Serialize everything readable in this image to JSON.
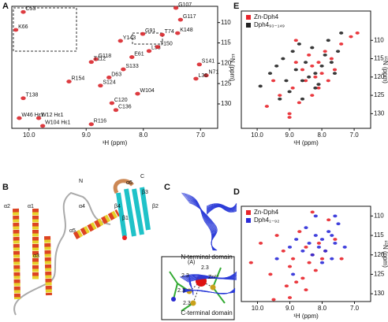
{
  "chart_data": [
    {
      "type": "scatter",
      "panel": "A",
      "xlabel": "¹H (ppm)",
      "ylabel": "¹⁵N (ppm)",
      "xlim": [
        10.3,
        6.7
      ],
      "ylim": [
        136,
        106
      ],
      "xticks": [
        {
          "value": 10,
          "label": "10.0"
        },
        {
          "value": 9,
          "label": "9.0"
        },
        {
          "value": 8,
          "label": "8.0"
        },
        {
          "value": 7,
          "label": "7.0"
        }
      ],
      "yticks": [
        110,
        115,
        120,
        125,
        130
      ],
      "series": [
        {
          "color": "#d9262b",
          "x": [
            7.43,
            7.35,
            8.01,
            7.67,
            7.4,
            8.83,
            8.91,
            6.9,
            10.1,
            10.17,
            9.83,
            9.76,
            8.91,
            7.08,
            7.02,
            10.1,
            10.23,
            8.55,
            8.48,
            8.2,
            8.35,
            7.9,
            8.6,
            8.75,
            7.75,
            8.1,
            9.3,
            8.4
          ],
          "values": [
            106.4,
            109.3,
            112.8,
            113.0,
            112.6,
            119.0,
            119.7,
            123.0,
            128.6,
            133.5,
            133.5,
            135.4,
            135.0,
            123.8,
            120.3,
            107.4,
            111.8,
            129.8,
            131.5,
            118.5,
            121.5,
            117.0,
            123.5,
            125.5,
            116.0,
            127.5,
            124.5,
            114.5
          ],
          "point_labels": [
            "G107",
            "G117",
            "G91",
            "T74",
            "K148",
            "G118",
            "T112",
            "N71",
            "T138",
            "W46 Hε1",
            "W12 Hε1",
            "W104 Hε1",
            "R116",
            "L36",
            "S141",
            "C53",
            "K66",
            "C120",
            "C136",
            "E61",
            "S133",
            "L98",
            "D63",
            "S124",
            "T150",
            "W104",
            "R154",
            "Y143"
          ]
        }
      ]
    },
    {
      "type": "scatter",
      "panel": "E",
      "xlabel": "¹H (ppm)",
      "ylabel": "¹⁵N (ppm)",
      "xlim": [
        10.49,
        6.49
      ],
      "ylim": [
        134,
        102
      ],
      "legend": "upper left",
      "xticks": [
        {
          "value": 10,
          "label": "10.0"
        },
        {
          "value": 9,
          "label": "9.0"
        },
        {
          "value": 8,
          "label": "8.0"
        },
        {
          "value": 7,
          "label": "7.0"
        }
      ],
      "yticks": [
        110,
        115,
        120,
        125,
        130
      ],
      "series": [
        {
          "name": "Zn-Dph4",
          "color": "#e8232a",
          "x": [
            9.7,
            9.5,
            9.3,
            9.0,
            8.9,
            8.8,
            8.6,
            8.5,
            8.4,
            8.3,
            8.2,
            8.1,
            8.0,
            7.9,
            7.8,
            7.6,
            7.4,
            7.1,
            6.9,
            9.0,
            8.7,
            8.3,
            8.1,
            7.7,
            8.8
          ],
          "values": [
            128,
            121,
            125,
            130,
            123,
            116,
            118,
            121,
            114,
            117,
            120,
            116,
            119,
            113,
            121,
            118,
            111,
            109,
            108,
            131,
            127,
            125,
            123,
            115,
            110
          ]
        },
        {
          "name": "Dph4₉₃₋₁₄₉",
          "color": "#222222",
          "x": [
            9.9,
            9.6,
            9.4,
            9.2,
            9.1,
            9.0,
            8.9,
            8.8,
            8.7,
            8.6,
            8.5,
            8.4,
            8.3,
            8.2,
            8.1,
            8.0,
            7.9,
            7.8,
            7.7,
            7.5,
            7.4,
            9.3,
            8.6,
            8.2,
            7.6
          ],
          "values": [
            122.5,
            119,
            117,
            115,
            121,
            124,
            113,
            118,
            111,
            126,
            116,
            120,
            112,
            119,
            122,
            117,
            114,
            110,
            116,
            113,
            108,
            126,
            121,
            123,
            119
          ]
        }
      ]
    },
    {
      "type": "scatter",
      "panel": "D",
      "xlabel": "¹H (ppm)",
      "ylabel": "¹⁵N (ppm)",
      "xlim": [
        10.5,
        6.5
      ],
      "ylim": [
        132,
        107.5
      ],
      "legend": "upper left",
      "xticks": [
        {
          "value": 10,
          "label": "10.0"
        },
        {
          "value": 9,
          "label": "9.0"
        },
        {
          "value": 8,
          "label": "8.0"
        },
        {
          "value": 7,
          "label": "7.0"
        }
      ],
      "yticks": [
        110,
        115,
        120,
        125,
        130
      ],
      "series": [
        {
          "name": "Zn-Dph4",
          "color": "#e8232a",
          "x": [
            10.2,
            9.9,
            9.6,
            9.4,
            9.2,
            9.1,
            9.0,
            8.9,
            8.7,
            8.6,
            8.5,
            8.4,
            8.3,
            8.2,
            8.1,
            8.0,
            7.9,
            7.8,
            7.6,
            7.4,
            9.5,
            9.0,
            8.8,
            8.5,
            8.3
          ],
          "values": [
            122,
            117,
            125,
            115,
            119,
            128,
            123,
            121,
            114,
            126,
            118,
            122,
            120,
            124,
            117,
            121,
            119,
            111,
            116,
            121,
            131.5,
            131,
            127,
            129,
            109
          ]
        },
        {
          "name": "Dph4₁₋₉₂",
          "color": "#2b2bd8",
          "x": [
            9.4,
            9.0,
            8.8,
            8.6,
            8.5,
            8.4,
            8.3,
            8.2,
            8.1,
            8.0,
            7.9,
            7.8,
            7.7,
            7.6,
            7.5,
            7.3,
            8.9,
            8.2,
            8.0,
            7.7,
            7.6
          ],
          "values": [
            121,
            118,
            116,
            119,
            113,
            117,
            120,
            115,
            118,
            116,
            119,
            114,
            121,
            117,
            112,
            118,
            125,
            110,
            122,
            115,
            110
          ]
        }
      ]
    }
  ],
  "structure": {
    "panel": "B",
    "labels": [
      "N",
      "C",
      "α1",
      "α2",
      "α3",
      "α4",
      "α5",
      "α6",
      "β1",
      "β2",
      "β3",
      "β4"
    ],
    "inset": {
      "labels": [
        "(A)",
        "2.3",
        "2.3",
        "2.3",
        "2.3",
        "Zn²⁺"
      ]
    }
  },
  "ensemble": {
    "panel": "C",
    "captions": [
      "N-terminal domain",
      "C-terminal domain"
    ]
  }
}
